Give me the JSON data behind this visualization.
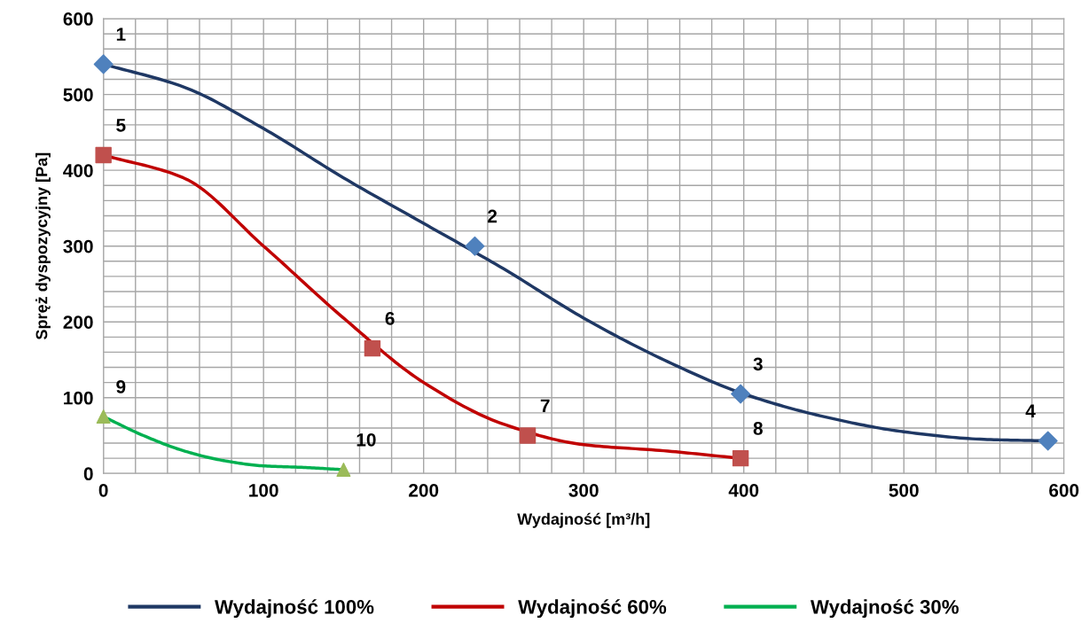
{
  "chart_data": {
    "type": "line",
    "xlabel": "Wydajność [m³/h]",
    "ylabel": "Spręż dyspozycyjny [Pa]",
    "xlim": [
      0,
      600
    ],
    "xticks": [
      0,
      100,
      200,
      300,
      400,
      500,
      600
    ],
    "ylim": [
      0,
      600
    ],
    "yticks": [
      0,
      100,
      200,
      300,
      400,
      500,
      600
    ],
    "grid": true,
    "legend": "bottom",
    "series": [
      {
        "name": "Wydajność 100%",
        "color": "#1f3864",
        "marker": "none",
        "x": [
          0,
          50,
          100,
          150,
          200,
          250,
          300,
          350,
          400,
          450,
          500,
          550,
          590
        ],
        "values": [
          540,
          510,
          455,
          390,
          330,
          270,
          205,
          150,
          105,
          75,
          55,
          45,
          43
        ]
      },
      {
        "name": "Wydajność 60%",
        "color": "#c00000",
        "marker": "none",
        "x": [
          0,
          50,
          100,
          150,
          200,
          250,
          300,
          350,
          398
        ],
        "values": [
          420,
          390,
          300,
          205,
          120,
          65,
          38,
          30,
          20
        ]
      },
      {
        "name": "Wydajność 30%",
        "color": "#00b050",
        "marker": "none",
        "x": [
          0,
          25,
          50,
          75,
          100,
          125,
          150
        ],
        "values": [
          75,
          50,
          30,
          17,
          10,
          8,
          5
        ]
      },
      {
        "type": "scatter",
        "color": "#4f81bd",
        "marker": "diamond",
        "x": [
          0,
          232,
          398,
          590
        ],
        "values": [
          540,
          300,
          105,
          43
        ]
      },
      {
        "type": "scatter",
        "color": "#c0504d",
        "marker": "square",
        "x": [
          0,
          168,
          265,
          398
        ],
        "values": [
          420,
          165,
          50,
          20
        ]
      },
      {
        "type": "scatter",
        "color": "#9bbb59",
        "marker": "triangle",
        "x": [
          0,
          150
        ],
        "values": [
          75,
          5
        ]
      }
    ],
    "annotations": [
      {
        "text": "1",
        "x": 0,
        "y": 540
      },
      {
        "text": "2",
        "x": 232,
        "y": 300
      },
      {
        "text": "3",
        "x": 398,
        "y": 105
      },
      {
        "text": "4",
        "x": 590,
        "y": 43
      },
      {
        "text": "5",
        "x": 0,
        "y": 420
      },
      {
        "text": "6",
        "x": 168,
        "y": 165
      },
      {
        "text": "7",
        "x": 265,
        "y": 50
      },
      {
        "text": "8",
        "x": 398,
        "y": 20
      },
      {
        "text": "9",
        "x": 0,
        "y": 75
      },
      {
        "text": "10",
        "x": 150,
        "y": 5
      }
    ]
  }
}
